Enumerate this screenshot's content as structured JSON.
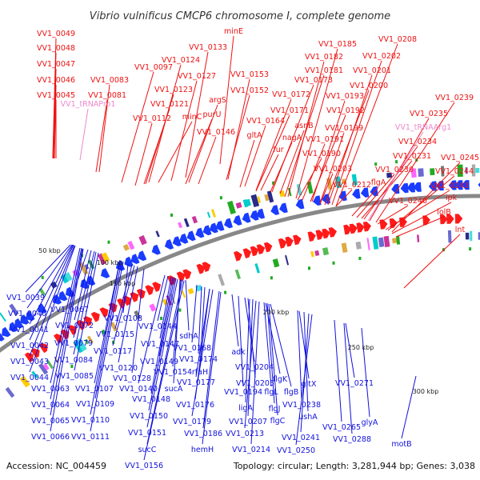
{
  "title": "Vibrio vulnificus CMCP6 chromosome I, complete genome",
  "footer": {
    "accession": "Accession: NC_004459",
    "summary": "Topology: circular; Length: 3,281,944 bp; Genes: 3,038"
  },
  "colors": {
    "forward_label": "#ee1111",
    "rna_label": "#ee88cc",
    "reverse_label": "#1111dd",
    "forward_arrow": "#ff1a1a",
    "reverse_arrow": "#1a3cff",
    "backbone": "#888888"
  },
  "kbp_ticks": [
    "50 kbp",
    "100 kbp",
    "150 kbp",
    "200 kbp",
    "250 kbp",
    "300 kbp"
  ],
  "forward_genes": [
    "VV1_0049",
    "VV1_0048",
    "VV1_0047",
    "VV1_0046",
    "VV1_0045",
    "VV1_0083",
    "VV1_0081",
    "VV1_0097",
    "minE",
    "VV1_0133",
    "VV1_0124",
    "VV1_0127",
    "VV1_0123",
    "VV1_0121",
    "VV1_0112",
    "minC",
    "argS",
    "purU",
    "VV1_0146",
    "VV1_0153",
    "VV1_0152",
    "VV1_0164",
    "gltA",
    "VV1_0172",
    "VV1_0171",
    "VV1_0173",
    "fur",
    "asnB",
    "nagA",
    "VV1_0185",
    "VV1_0182",
    "VV1_0181",
    "VV1_0208",
    "VV1_0202",
    "VV1_0201",
    "VV1_0200",
    "VV1_0193",
    "VV1_0192",
    "VV1_0199",
    "VV1_0191",
    "VV1_0190",
    "VV1_0203",
    "VV1_0212",
    "VV1_0239",
    "VV1_0235",
    "VV1_0234",
    "VV1_0231",
    "VV1_0230",
    "flgA",
    "VV1_0240",
    "VV1_0245",
    "VV1_0244",
    "VV1_0243",
    "ipk",
    "lolB",
    "lnt"
  ],
  "rna_genes": [
    "VV1_tRNAPro1",
    "VV1_tRNAArg1"
  ],
  "reverse_genes": [
    "VV1_0039",
    "VV1_0040",
    "VV1_0041",
    "VV1_0042",
    "VV1_0043",
    "VV1_0044",
    "VV1_0063",
    "VV1_0064",
    "VV1_0065",
    "VV1_0066",
    "VV1_0067",
    "VV1_0072",
    "VV1_0079",
    "VV1_0084",
    "VV1_0085",
    "VV1_0107",
    "VV1_0109",
    "VV1_0110",
    "VV1_0111",
    "VV1_0108",
    "VV1_0115",
    "VV1_0117",
    "VV1_0120",
    "VV1_0128",
    "VV1_0144",
    "sdhA",
    "VV1_0147",
    "VV1_0149",
    "VV1_0154",
    "VV1_0140",
    "sucA",
    "VV1_0148",
    "VV1_0150",
    "VV1_0151",
    "sucC",
    "VV1_0156",
    "VV1_0168",
    "VV1_0174",
    "rfaH",
    "VV1_0177",
    "VV1_0176",
    "VV1_0179",
    "VV1_0186",
    "hemH",
    "adk",
    "VV1_0204",
    "VV1_0194",
    "VV1_0205",
    "ligA",
    "VV1_0207",
    "VV1_0213",
    "VV1_0214",
    "flgK",
    "flgL",
    "flgB",
    "flgJ",
    "flgC",
    "gltX",
    "VV1_0238",
    "ushA",
    "VV1_0241",
    "VV1_0250",
    "VV1_0265",
    "VV1_0288",
    "VV1_0271",
    "glyA",
    "motB"
  ]
}
